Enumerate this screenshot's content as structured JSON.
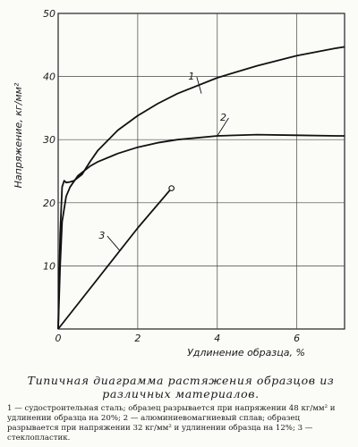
{
  "chart_data": {
    "type": "line",
    "title": "",
    "xlabel": "Удлинение образца, %",
    "ylabel": "Напряжение, кг/мм²",
    "xlim": [
      0,
      7.2
    ],
    "ylim": [
      0,
      50
    ],
    "xticks": [
      2,
      4,
      6
    ],
    "yticks": [
      10,
      20,
      30,
      40,
      50
    ],
    "grid": true,
    "series": [
      {
        "name": "1",
        "x": [
          0,
          0.05,
          0.1,
          0.15,
          0.2,
          0.3,
          0.4,
          0.6,
          0.8,
          1.0,
          1.5,
          2.0,
          2.5,
          3.0,
          4.0,
          5.0,
          6.0,
          7.0,
          7.2
        ],
        "y": [
          0,
          15,
          22.5,
          23.5,
          23.2,
          23.3,
          23.5,
          24.5,
          26.5,
          28.3,
          31.5,
          33.8,
          35.7,
          37.3,
          39.8,
          41.7,
          43.3,
          44.5,
          44.7
        ]
      },
      {
        "name": "2",
        "x": [
          0,
          0.05,
          0.1,
          0.2,
          0.3,
          0.5,
          0.8,
          1.0,
          1.5,
          2.0,
          2.5,
          3.0,
          4.0,
          5.0,
          6.0,
          7.0,
          7.2
        ],
        "y": [
          0,
          10,
          17,
          21,
          22.5,
          24.3,
          25.8,
          26.5,
          27.8,
          28.8,
          29.5,
          30.0,
          30.6,
          30.8,
          30.7,
          30.6,
          30.6
        ]
      },
      {
        "name": "3",
        "x": [
          0,
          2.0,
          2.85
        ],
        "y": [
          0,
          16,
          22.3
        ]
      }
    ]
  },
  "caption": {
    "title": "Типичная диаграмма растяжения образцов из различных материалов.",
    "text": "1 — судостроительная сталь; образец разрывается при напряжении 48 кг/мм² и удлинении образца на 20%; 2 — алюминиевомагниевый сплав; образец разрывается при напряжении 32 кг/мм² и удлинении образца на 12%; 3 — стеклопластик."
  }
}
